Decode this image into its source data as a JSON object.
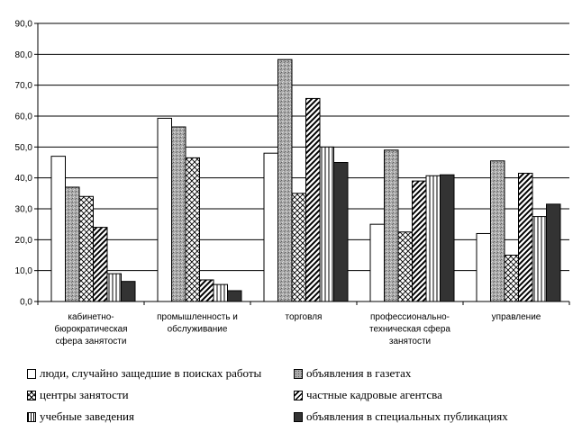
{
  "chart_data": {
    "type": "bar",
    "categories": [
      [
        "кабинетно-",
        "бюрократическая",
        "сфера занятости"
      ],
      [
        "промышленность и",
        "обслуживание"
      ],
      [
        "торговля"
      ],
      [
        "профессионально-",
        "техническая сфера",
        "занятости"
      ],
      [
        "управление"
      ]
    ],
    "series": [
      {
        "name": "люди, случайно защедшие в поисках работы",
        "pattern": "blank",
        "values": [
          47.0,
          59.3,
          48.0,
          25.0,
          22.0
        ]
      },
      {
        "name": "объявления в газетах",
        "pattern": "stipple",
        "values": [
          37.0,
          56.5,
          78.3,
          49.0,
          45.5
        ]
      },
      {
        "name": "центры занятости",
        "pattern": "crosshatch",
        "values": [
          34.0,
          46.5,
          35.0,
          22.5,
          15.0
        ]
      },
      {
        "name": "частные кадровые агентсва",
        "pattern": "diagonal",
        "values": [
          24.0,
          7.0,
          65.7,
          39.0,
          41.5
        ]
      },
      {
        "name": "учебные заведения",
        "pattern": "vertical",
        "values": [
          9.0,
          5.5,
          50.0,
          40.7,
          27.5
        ]
      },
      {
        "name": "объявления в специальных публикациях",
        "pattern": "solid",
        "values": [
          6.5,
          3.5,
          45.0,
          41.0,
          31.5
        ]
      }
    ],
    "yticks": [
      "0,0",
      "10,0",
      "20,0",
      "30,0",
      "40,0",
      "50,0",
      "60,0",
      "70,0",
      "80,0",
      "90,0"
    ],
    "ylim": [
      0,
      90
    ],
    "grid": true,
    "legend_position": "bottom",
    "colors": {
      "solid": "#333333",
      "stipple": "#a9a9a9",
      "axis": "#000000"
    }
  }
}
